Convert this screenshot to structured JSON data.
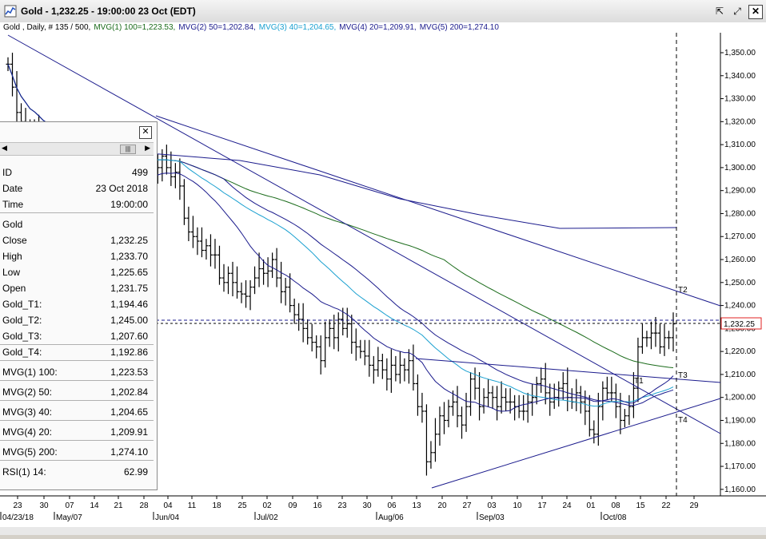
{
  "window": {
    "title": "Gold - 1,232.25 - 19:00:00  23 Oct (EDT)",
    "buttons": [
      "restore",
      "maximize",
      "close"
    ]
  },
  "info_line": {
    "symbol": "Gold , Daily, # 135 / 500,",
    "mvg1": "MVG(1) 100=1,223.53,",
    "mvg2": "MVG(2) 50=1,202.84,",
    "mvg3": "MVG(3) 40=1,204.65,",
    "mvg4": "MVG(4) 20=1,209.91,",
    "mvg5": "MVG(5) 200=1,274.10",
    "colors": {
      "mvg1": "#1a6b1a",
      "mvg2": "#1a1a8c",
      "mvg3": "#1aa0d0",
      "mvg4": "#1a1a8c",
      "mvg5": "#1a1a8c"
    }
  },
  "data_panel": {
    "rows": [
      {
        "label": "ID",
        "value": "499"
      },
      {
        "label": "Date",
        "value": "23 Oct 2018"
      },
      {
        "label": "Time",
        "value": "19:00:00"
      },
      {
        "label": "Gold",
        "value": ""
      },
      {
        "label": "Close",
        "value": "1,232.25"
      },
      {
        "label": "High",
        "value": "1,233.70"
      },
      {
        "label": "Low",
        "value": "1,225.65"
      },
      {
        "label": "Open",
        "value": "1,231.75"
      },
      {
        "label": "Gold_T1:",
        "value": "1,194.46"
      },
      {
        "label": "Gold_T2:",
        "value": "1,245.00"
      },
      {
        "label": "Gold_T3:",
        "value": "1,207.60"
      },
      {
        "label": "Gold_T4:",
        "value": "1,192.86"
      },
      {
        "label": "MVG(1) 100:",
        "value": "1,223.53"
      },
      {
        "label": "MVG(2) 50:",
        "value": "1,202.84"
      },
      {
        "label": "MVG(3) 40:",
        "value": "1,204.65"
      },
      {
        "label": "MVG(4) 20:",
        "value": "1,209.91"
      },
      {
        "label": "MVG(5) 200:",
        "value": "1,274.10"
      },
      {
        "label": "RSI(1) 14:",
        "value": "62.99"
      }
    ]
  },
  "chart_data": {
    "type": "line",
    "title": "Gold , Daily",
    "last_price_label": "1,232.25",
    "ylim": [
      1155,
      1360
    ],
    "y_ticks": [
      "1,350.00",
      "1,340.00",
      "1,330.00",
      "1,320.00",
      "1,310.00",
      "1,300.00",
      "1,290.00",
      "1,280.00",
      "1,270.00",
      "1,260.00",
      "1,250.00",
      "1,240.00",
      "1,230.00",
      "1,220.00",
      "1,210.00",
      "1,200.00",
      "1,190.00",
      "1,180.00",
      "1,170.00",
      "1,160.00"
    ],
    "x_ticks": [
      "23",
      "30",
      "07",
      "14",
      "21",
      "28",
      "04",
      "11",
      "18",
      "25",
      "02",
      "09",
      "16",
      "23",
      "30",
      "06",
      "13",
      "20",
      "27",
      "03",
      "10",
      "17",
      "24",
      "01",
      "08",
      "15",
      "22",
      "29"
    ],
    "x_month_labels": [
      "04/23/18",
      "May/07",
      "Jun/04",
      "Jul/02",
      "Aug/06",
      "Sep/03",
      "Oct/08"
    ],
    "trendline_labels": [
      "T1",
      "T2",
      "T3",
      "T4"
    ],
    "closes": [
      1345,
      1335,
      1324,
      1320,
      1318,
      1312,
      1316,
      1310,
      1305,
      1308,
      1300,
      1302,
      1296,
      1298,
      1294,
      1293,
      1296,
      1298,
      1294,
      1300,
      1298,
      1296,
      1292,
      1296,
      1296,
      1300,
      1302,
      1298,
      1294,
      1296,
      1300,
      1296,
      1293,
      1298,
      1300,
      1305,
      1300,
      1296,
      1298,
      1292,
      1278,
      1272,
      1270,
      1268,
      1264,
      1266,
      1262,
      1262,
      1252,
      1250,
      1254,
      1250,
      1246,
      1245,
      1244,
      1248,
      1252,
      1256,
      1254,
      1255,
      1260,
      1252,
      1246,
      1248,
      1240,
      1236,
      1234,
      1230,
      1226,
      1224,
      1222,
      1216,
      1226,
      1230,
      1226,
      1234,
      1230,
      1232,
      1224,
      1222,
      1220,
      1218,
      1214,
      1212,
      1216,
      1212,
      1208,
      1214,
      1210,
      1214,
      1212,
      1216,
      1206,
      1196,
      1194,
      1172,
      1176,
      1184,
      1192,
      1190,
      1196,
      1198,
      1192,
      1188,
      1196,
      1208,
      1204,
      1196,
      1200,
      1202,
      1200,
      1196,
      1200,
      1198,
      1198,
      1196,
      1194,
      1194,
      1198,
      1200,
      1206,
      1208,
      1202,
      1198,
      1200,
      1204,
      1206,
      1200,
      1198,
      1202,
      1198,
      1194,
      1186,
      1184,
      1196,
      1204,
      1202,
      1202,
      1196,
      1190,
      1192,
      1196,
      1204,
      1222,
      1226,
      1226,
      1228,
      1228,
      1222,
      1226,
      1226,
      1232
    ]
  }
}
